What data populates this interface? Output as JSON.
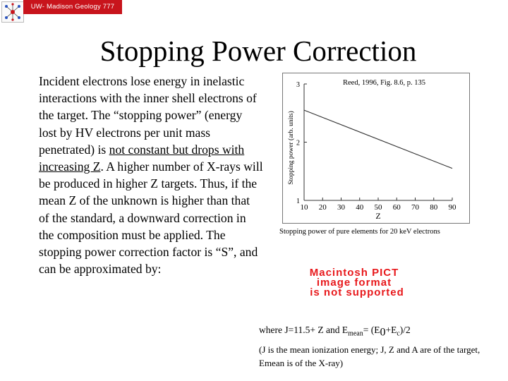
{
  "header": {
    "banner_text": "UW- Madison Geology 777"
  },
  "slide": {
    "title": "Stopping Power Correction",
    "body": {
      "part1": "Incident electrons lose energy in inelastic interactions with the inner shell electrons of the target. The “stopping power” (energy lost by HV electrons per unit mass penetrated) is ",
      "underlined": "not constant but drops with increasing Z",
      "part2": ". A higher number of X-rays will be produced in higher Z targets. Thus, if the mean Z of the unknown is higher than that of the standard, a downward correction in the composition must be applied. The stopping power correction factor is “S”, and can be approximated by:"
    }
  },
  "figure": {
    "credit": "Reed, 1996, Fig. 8.6, p. 135",
    "caption": "Stopping power of pure elements for 20 keV electrons"
  },
  "chart_data": {
    "type": "line",
    "xlabel": "Z",
    "ylabel": "Stopping power (arb. units)",
    "xlim": [
      10,
      90
    ],
    "ylim": [
      1,
      3
    ],
    "x_ticks": [
      "10",
      "20",
      "30",
      "40",
      "50",
      "60",
      "70",
      "80",
      "90"
    ],
    "y_ticks": [
      "1",
      "2",
      "3"
    ],
    "series": [
      {
        "x": [
          10,
          90
        ],
        "y": [
          2.55,
          1.55
        ]
      }
    ]
  },
  "pict_placeholder": {
    "line1": "Macintosh PICT",
    "line2": "image format",
    "line3": "is not supported",
    "color": "#e8191c"
  },
  "formula": {
    "pre": "where J=11.5+ Z and E",
    "sub1": "mean",
    "mid": "= (E",
    "sub2": "0",
    "plus": "+E",
    "sub3": "c",
    "post": ")/2"
  },
  "note": {
    "text": "(J is the mean ionization energy; J, Z and A are of the target, Emean is of the X-ray)"
  }
}
